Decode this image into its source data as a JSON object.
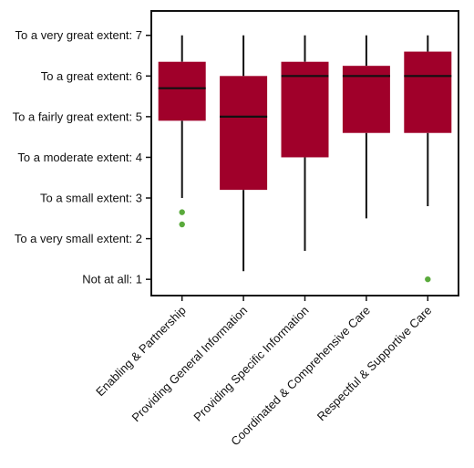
{
  "chart_data": {
    "type": "boxplot",
    "title": "",
    "xlabel": "",
    "ylabel": "",
    "ylim": [
      0.6,
      7.6
    ],
    "yticks": [
      {
        "value": 1,
        "label": "Not at all: 1"
      },
      {
        "value": 2,
        "label": "To a very small extent: 2"
      },
      {
        "value": 3,
        "label": "To a small extent: 3"
      },
      {
        "value": 4,
        "label": "To a moderate extent: 4"
      },
      {
        "value": 5,
        "label": "To a fairly great extent: 5"
      },
      {
        "value": 6,
        "label": "To a great extent: 6"
      },
      {
        "value": 7,
        "label": "To a very great extent: 7"
      }
    ],
    "categories": [
      "Enabling & Partnership",
      "Providing General Information",
      "Providing Specific Information",
      "Coordinated & Comprehensive Care",
      "Respectful & Supportive Care"
    ],
    "boxes": [
      {
        "whisker_low": 3.0,
        "q1": 4.9,
        "median": 5.7,
        "q3": 6.35,
        "whisker_high": 7.0,
        "outliers": [
          2.65,
          2.35
        ]
      },
      {
        "whisker_low": 1.2,
        "q1": 3.2,
        "median": 5.0,
        "q3": 6.0,
        "whisker_high": 7.0,
        "outliers": []
      },
      {
        "whisker_low": 1.7,
        "q1": 4.0,
        "median": 6.0,
        "q3": 6.35,
        "whisker_high": 7.0,
        "outliers": []
      },
      {
        "whisker_low": 2.5,
        "q1": 4.6,
        "median": 6.0,
        "q3": 6.25,
        "whisker_high": 7.0,
        "outliers": []
      },
      {
        "whisker_low": 2.8,
        "q1": 4.6,
        "median": 6.0,
        "q3": 6.6,
        "whisker_high": 7.0,
        "outliers": [
          1.0
        ]
      }
    ],
    "colors": {
      "box": "#a0002a",
      "median": "#111111",
      "whisker": "#111111",
      "outlier": "#5aaa3c",
      "axis": "#111111"
    },
    "grid": false,
    "legend": "none"
  }
}
